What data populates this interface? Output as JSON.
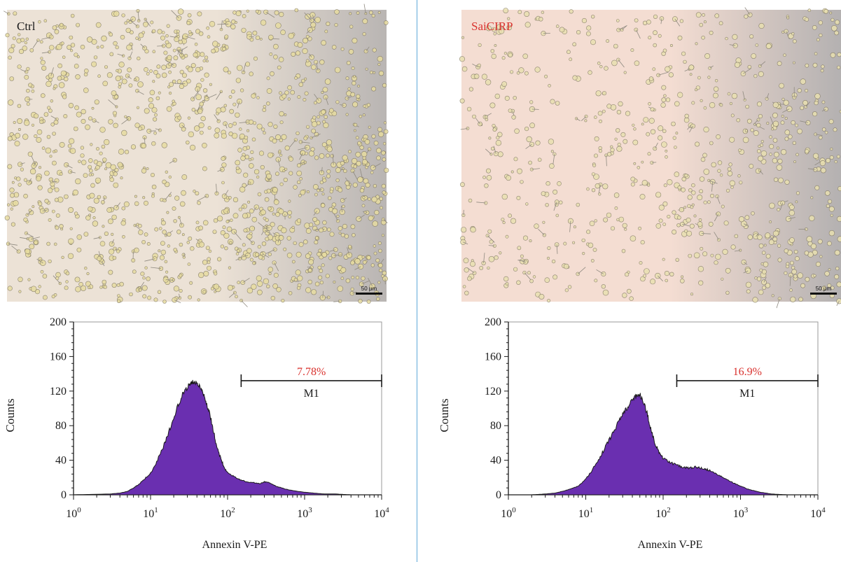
{
  "panels": [
    {
      "id": "ctrl",
      "micrograph": {
        "label": "Ctrl",
        "label_color": "#1a1a1a",
        "scale_bar": "50 μm",
        "background": [
          "#ece2d6",
          "#b9b5b3"
        ],
        "cell_color": "#e7dca0"
      },
      "histogram": {
        "type": "area",
        "xlabel": "Annexin V-PE",
        "ylabel": "Counts",
        "xscale": "log",
        "xlim": [
          1,
          10000
        ],
        "ylim": [
          0,
          200
        ],
        "yticks": [
          0,
          40,
          80,
          120,
          160,
          200
        ],
        "xticks": [
          {
            "base": "10",
            "exp": "0"
          },
          {
            "base": "10",
            "exp": "1"
          },
          {
            "base": "10",
            "exp": "2"
          },
          {
            "base": "10",
            "exp": "3"
          },
          {
            "base": "10",
            "exp": "4"
          }
        ],
        "fill_color": "#6a2fb0",
        "edge_color": "#1a1a1a",
        "x": [
          1,
          3,
          4,
          5,
          6,
          7,
          8,
          10,
          12,
          15,
          18,
          22,
          26,
          30,
          33,
          36,
          40,
          45,
          50,
          56,
          63,
          70,
          80,
          90,
          100,
          120,
          150,
          180,
          220,
          260,
          300,
          350,
          400,
          500,
          600,
          800,
          1000,
          1300,
          1800,
          2500,
          4000,
          10000
        ],
        "y": [
          0,
          1,
          2,
          4,
          8,
          12,
          17,
          25,
          38,
          58,
          78,
          100,
          116,
          124,
          129,
          131,
          130,
          124,
          114,
          100,
          82,
          62,
          44,
          32,
          26,
          21,
          17,
          15,
          14,
          13,
          15,
          14,
          11,
          8,
          6,
          4,
          3,
          2,
          1,
          1,
          0,
          0
        ],
        "gate": {
          "label": "M1",
          "percent": "7.78%",
          "x_start": 150,
          "x_end": 10000,
          "y": 132,
          "percent_color": "#d9322e"
        }
      }
    },
    {
      "id": "saicirp",
      "micrograph": {
        "label": "SaiCIRP",
        "label_color": "#d9322e",
        "scale_bar": "50 μm",
        "background": [
          "#f4ddd2",
          "#b4b1b1"
        ],
        "cell_color": "#e9e0b0"
      },
      "histogram": {
        "type": "area",
        "xlabel": "Annexin V-PE",
        "ylabel": "Counts",
        "xscale": "log",
        "xlim": [
          1,
          10000
        ],
        "ylim": [
          0,
          200
        ],
        "yticks": [
          0,
          40,
          80,
          120,
          160,
          200
        ],
        "xticks": [
          {
            "base": "10",
            "exp": "0"
          },
          {
            "base": "10",
            "exp": "1"
          },
          {
            "base": "10",
            "exp": "2"
          },
          {
            "base": "10",
            "exp": "3"
          },
          {
            "base": "10",
            "exp": "4"
          }
        ],
        "fill_color": "#6a2fb0",
        "edge_color": "#1a1a1a",
        "x": [
          1,
          2,
          3,
          4,
          5,
          6,
          8,
          10,
          12,
          15,
          18,
          22,
          26,
          30,
          35,
          40,
          45,
          50,
          56,
          63,
          70,
          80,
          90,
          100,
          120,
          150,
          180,
          220,
          260,
          300,
          350,
          400,
          500,
          600,
          800,
          1000,
          1300,
          1800,
          2500,
          4000,
          10000
        ],
        "y": [
          0,
          0,
          1,
          2,
          4,
          6,
          10,
          18,
          28,
          42,
          56,
          70,
          82,
          92,
          102,
          110,
          114,
          116,
          108,
          92,
          74,
          58,
          48,
          42,
          38,
          34,
          32,
          31,
          32,
          31,
          30,
          28,
          24,
          20,
          14,
          10,
          6,
          3,
          1,
          0,
          0
        ],
        "gate": {
          "label": "M1",
          "percent": "16.9%",
          "x_start": 150,
          "x_end": 10000,
          "y": 132,
          "percent_color": "#d9322e"
        }
      }
    }
  ]
}
